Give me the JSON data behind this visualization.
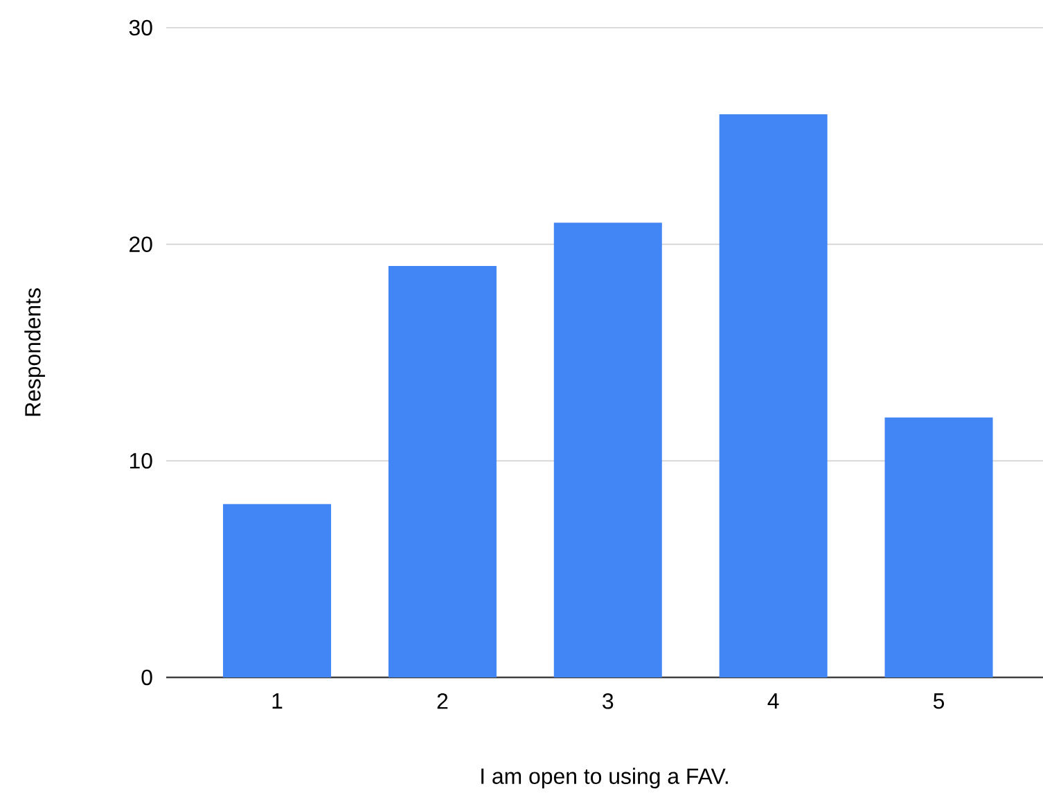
{
  "chart_data": {
    "type": "bar",
    "xlabel": "I am open to using a FAV.",
    "ylabel": "Respondents",
    "categories": [
      "1",
      "2",
      "3",
      "4",
      "5"
    ],
    "values": [
      8,
      19,
      21,
      26,
      12
    ],
    "color": "#4285f4",
    "ylim": [
      0,
      30
    ],
    "yticks": [
      0,
      10,
      20,
      30
    ],
    "grid": "y"
  }
}
